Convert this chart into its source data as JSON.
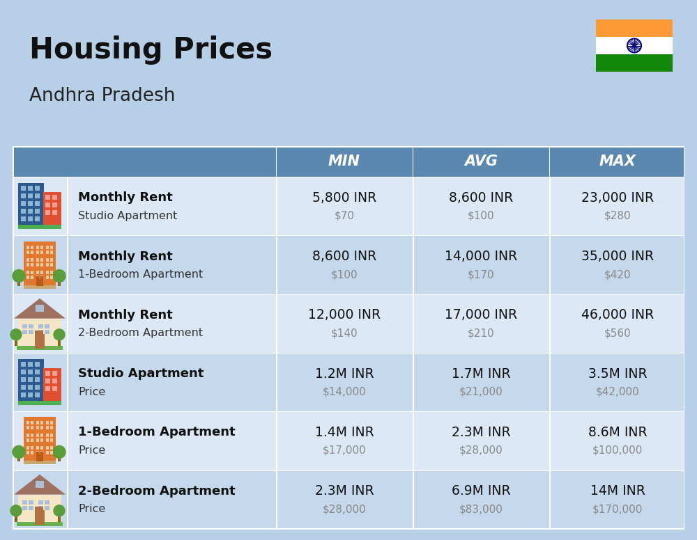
{
  "title": "Housing Prices",
  "subtitle": "Andhra Pradesh",
  "bg_color": "#b8cfe8",
  "header_bg": "#5b8db8",
  "header_text_color": "#ffffff",
  "row_bg_light": "#dce8f5",
  "row_bg_dark": "#c5d8ec",
  "header_labels": [
    "MIN",
    "AVG",
    "MAX"
  ],
  "rows": [
    {
      "bold_label": "Monthly Rent",
      "sub_label": "Studio Apartment",
      "min_inr": "5,800 INR",
      "min_usd": "$70",
      "avg_inr": "8,600 INR",
      "avg_usd": "$100",
      "max_inr": "23,000 INR",
      "max_usd": "$280",
      "icon": "office_blue"
    },
    {
      "bold_label": "Monthly Rent",
      "sub_label": "1-Bedroom Apartment",
      "min_inr": "8,600 INR",
      "min_usd": "$100",
      "avg_inr": "14,000 INR",
      "avg_usd": "$170",
      "max_inr": "35,000 INR",
      "max_usd": "$420",
      "icon": "apartment_orange"
    },
    {
      "bold_label": "Monthly Rent",
      "sub_label": "2-Bedroom Apartment",
      "min_inr": "12,000 INR",
      "min_usd": "$140",
      "avg_inr": "17,000 INR",
      "avg_usd": "$210",
      "max_inr": "46,000 INR",
      "max_usd": "$560",
      "icon": "house_beige"
    },
    {
      "bold_label": "Studio Apartment",
      "sub_label": "Price",
      "min_inr": "1.2M INR",
      "min_usd": "$14,000",
      "avg_inr": "1.7M INR",
      "avg_usd": "$21,000",
      "max_inr": "3.5M INR",
      "max_usd": "$42,000",
      "icon": "office_blue"
    },
    {
      "bold_label": "1-Bedroom Apartment",
      "sub_label": "Price",
      "min_inr": "1.4M INR",
      "min_usd": "$17,000",
      "avg_inr": "2.3M INR",
      "avg_usd": "$28,000",
      "max_inr": "8.6M INR",
      "max_usd": "$100,000",
      "icon": "apartment_orange"
    },
    {
      "bold_label": "2-Bedroom Apartment",
      "sub_label": "Price",
      "min_inr": "2.3M INR",
      "min_usd": "$28,000",
      "avg_inr": "6.9M INR",
      "avg_usd": "$83,000",
      "max_inr": "14M INR",
      "max_usd": "$170,000",
      "icon": "house_beige"
    }
  ]
}
